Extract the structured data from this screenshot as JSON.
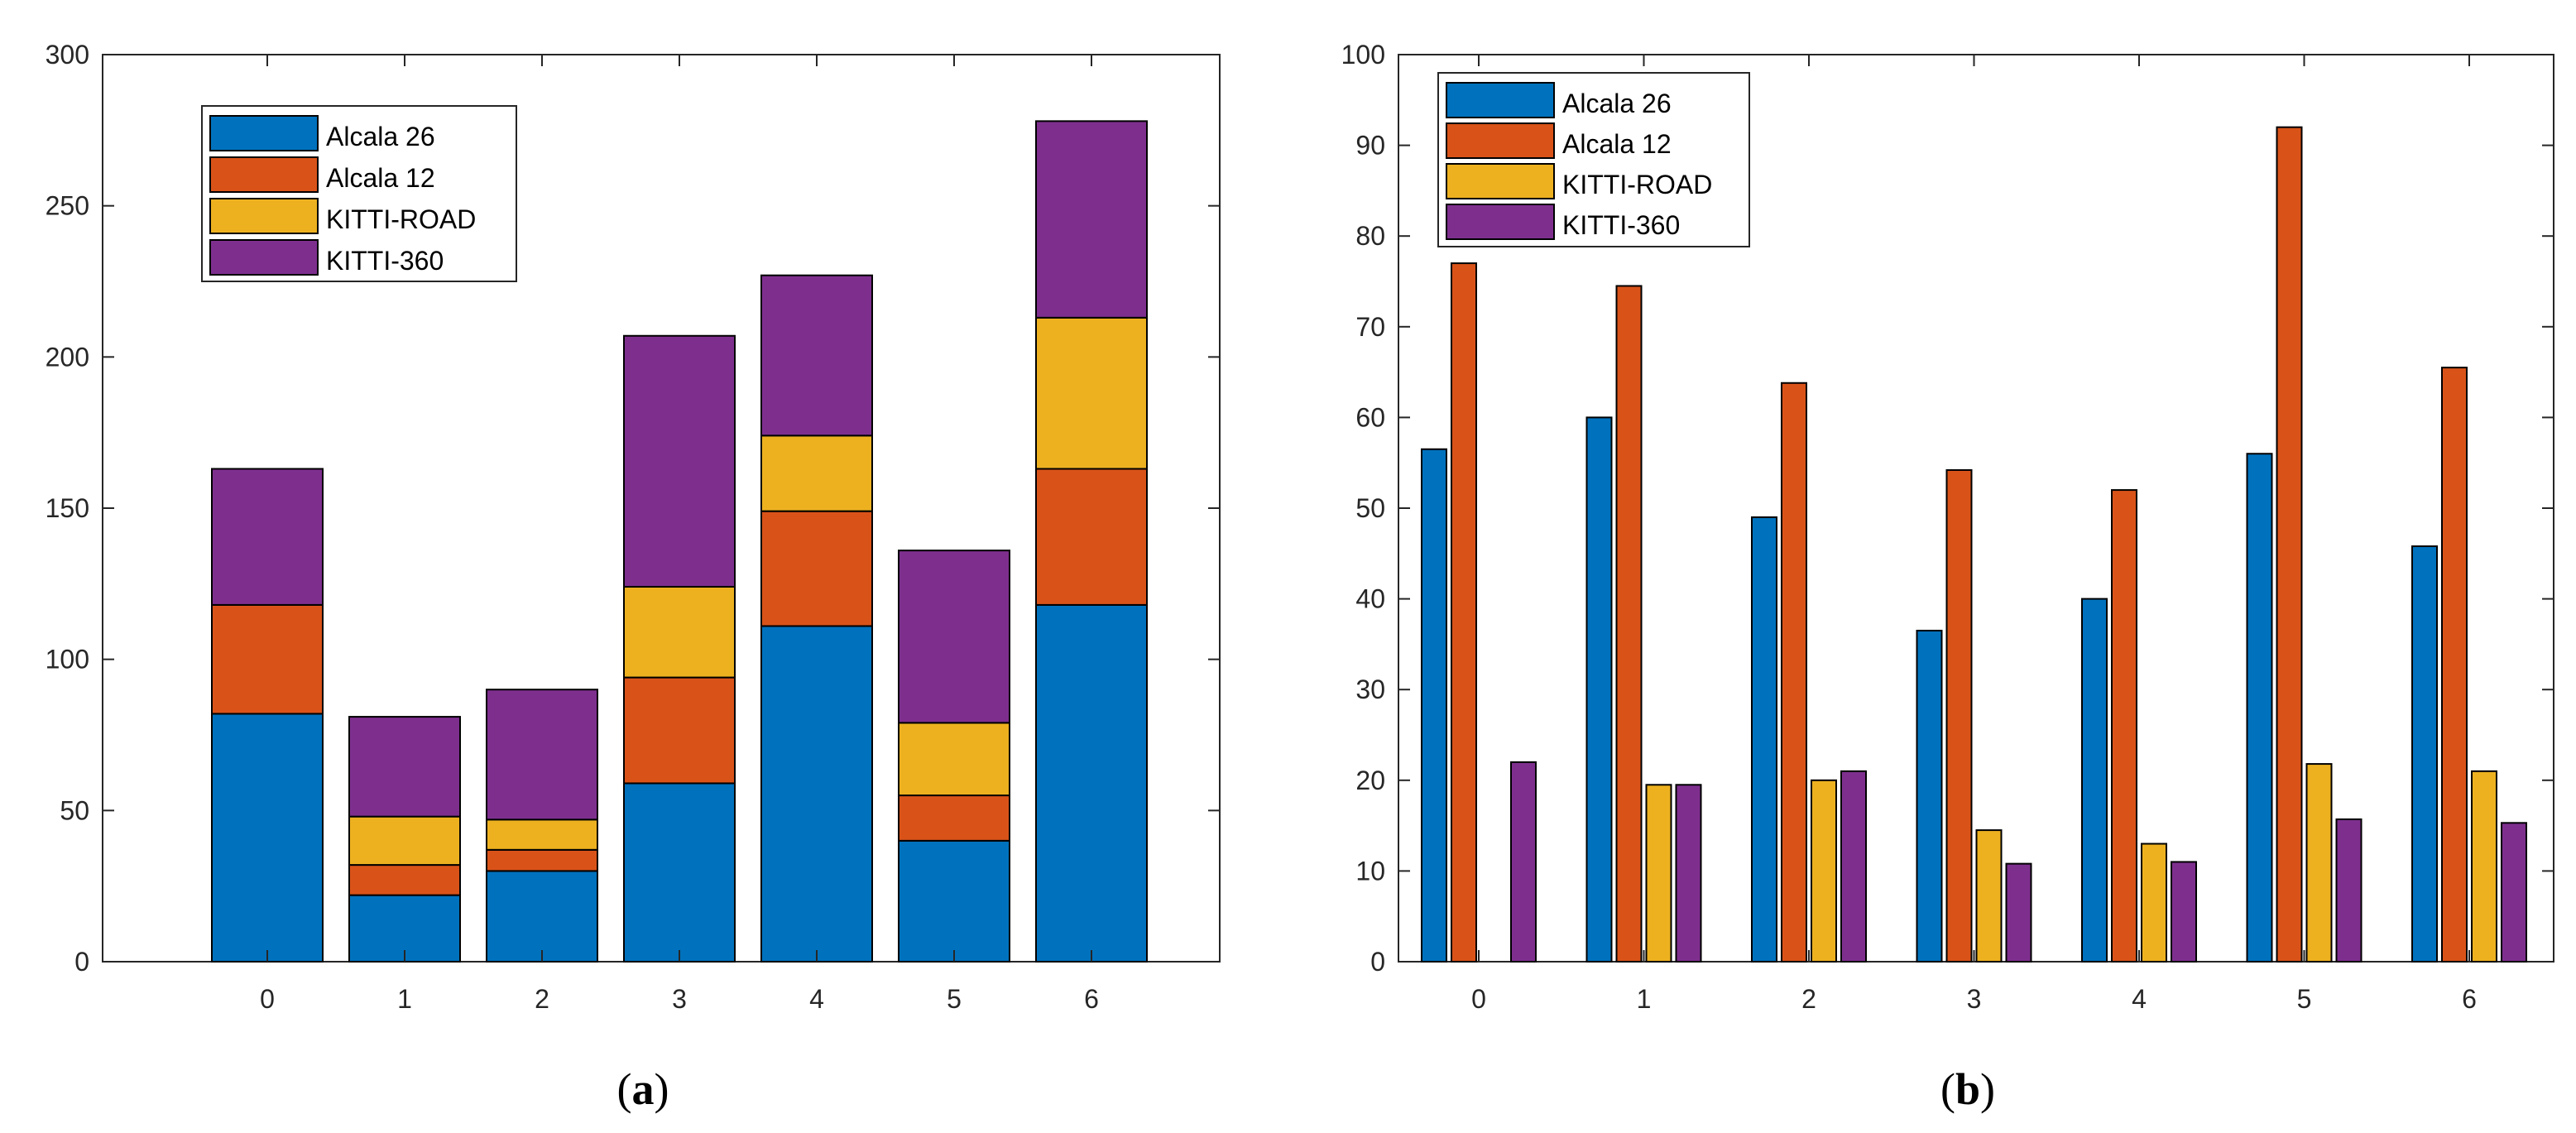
{
  "chart_data": [
    {
      "type": "bar",
      "stacked": true,
      "title": "",
      "xlabel": "",
      "ylabel": "",
      "caption_label": "a",
      "categories": [
        "0",
        "1",
        "2",
        "3",
        "4",
        "5",
        "6"
      ],
      "series": [
        {
          "name": "Alcala 26",
          "color": "#0072BD",
          "values": [
            82,
            22,
            30,
            59,
            111,
            40,
            118
          ]
        },
        {
          "name": "Alcala 12",
          "color": "#D95319",
          "values": [
            36,
            10,
            7,
            35,
            38,
            15,
            45
          ]
        },
        {
          "name": "KITTI-ROAD",
          "color": "#EDB120",
          "values": [
            0,
            16,
            10,
            30,
            25,
            24,
            50
          ]
        },
        {
          "name": "KITTI-360",
          "color": "#7E2F8E",
          "values": [
            45,
            33,
            43,
            83,
            53,
            57,
            65
          ]
        }
      ],
      "ylim": [
        0,
        300
      ],
      "yticks": [
        "0",
        "50",
        "100",
        "150",
        "200",
        "250",
        "300"
      ],
      "legend_position": "top-left"
    },
    {
      "type": "bar",
      "stacked": false,
      "title": "",
      "xlabel": "",
      "ylabel": "",
      "caption_label": "b",
      "categories": [
        "0",
        "1",
        "2",
        "3",
        "4",
        "5",
        "6"
      ],
      "series": [
        {
          "name": "Alcala 26",
          "color": "#0072BD",
          "values": [
            56.5,
            60,
            49,
            36.5,
            40,
            56,
            45.8
          ]
        },
        {
          "name": "Alcala 12",
          "color": "#D95319",
          "values": [
            77,
            74.5,
            63.8,
            54.2,
            52,
            92,
            65.5
          ]
        },
        {
          "name": "KITTI-ROAD",
          "color": "#EDB120",
          "values": [
            0,
            19.5,
            20,
            14.5,
            13,
            21.8,
            21
          ]
        },
        {
          "name": "KITTI-360",
          "color": "#7E2F8E",
          "values": [
            22,
            19.5,
            21,
            10.8,
            11,
            15.7,
            15.3
          ]
        }
      ],
      "ylim": [
        0,
        100
      ],
      "yticks": [
        "0",
        "10",
        "20",
        "30",
        "40",
        "50",
        "60",
        "70",
        "80",
        "90",
        "100"
      ],
      "legend_position": "top-left"
    }
  ]
}
